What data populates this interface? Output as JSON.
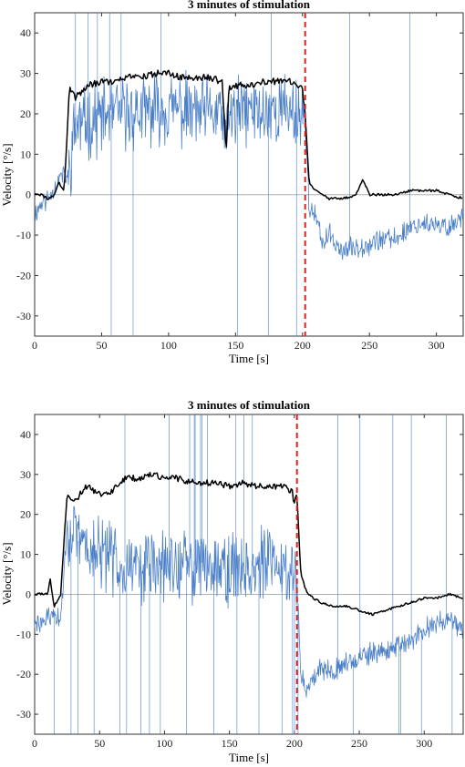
{
  "colors": {
    "black_trace": "#000000",
    "blue_trace": "#4a7fc8",
    "stim_end": "#e0201b",
    "zero_line": "#b0b0b0"
  },
  "chart_data": [
    {
      "type": "line",
      "title": "3 minutes of stimulation",
      "xlabel": "Time [s]",
      "ylabel": "Velocity [°/s]",
      "xlim": [
        0,
        320
      ],
      "ylim": [
        -35,
        45
      ],
      "xticks": [
        0,
        50,
        100,
        150,
        200,
        250,
        300
      ],
      "yticks": [
        -30,
        -20,
        -10,
        0,
        10,
        20,
        30,
        40
      ],
      "xtick_labels": [
        "0",
        "50",
        "100",
        "150",
        "200",
        "250",
        "300"
      ],
      "ytick_labels": [
        "-30",
        "-20",
        "-10",
        "0",
        "10",
        "20",
        "30",
        "40"
      ],
      "grid": false,
      "stimulation_end_x": 202,
      "series": [
        {
          "x": [
            0,
            5,
            10,
            15,
            18,
            22,
            26,
            30,
            40,
            50,
            60,
            70,
            80,
            90,
            100,
            110,
            120,
            130,
            140,
            143,
            145,
            150,
            160,
            170,
            180,
            190,
            195,
            200,
            202,
            205,
            210,
            220,
            230,
            240,
            245,
            250,
            260,
            270,
            280,
            290,
            300,
            310,
            320
          ],
          "y": [
            0,
            0,
            -1,
            0,
            3,
            1,
            26,
            24,
            27,
            28,
            28,
            29,
            29,
            30,
            30,
            29,
            29,
            29,
            28,
            10,
            26,
            27,
            27,
            28,
            28,
            28,
            27,
            26,
            20,
            3,
            1,
            -1,
            -1,
            0,
            4,
            0,
            0,
            0,
            1,
            1,
            1,
            0,
            -1
          ]
        },
        {
          "x": [
            0,
            5,
            10,
            15,
            20,
            25,
            30,
            40,
            50,
            60,
            70,
            80,
            90,
            100,
            110,
            120,
            130,
            140,
            143,
            145,
            150,
            160,
            170,
            180,
            190,
            200,
            202,
            205,
            210,
            215,
            220,
            225,
            230,
            240,
            250,
            260,
            270,
            280,
            290,
            300,
            310,
            320
          ],
          "y": [
            -5,
            -2,
            -1,
            2,
            5,
            4,
            17,
            18,
            19,
            20,
            20,
            20,
            21,
            21,
            21,
            20,
            20,
            20,
            12,
            20,
            20,
            21,
            20,
            21,
            21,
            20,
            18,
            -3,
            -6,
            -12,
            -10,
            -12,
            -14,
            -13,
            -12,
            -11,
            -11,
            -8,
            -7,
            -8,
            -8,
            -5
          ]
        }
      ]
    },
    {
      "type": "line",
      "title": "3 minutes of stimulation",
      "xlabel": "Time [s]",
      "ylabel": "Velocity [°/s]",
      "xlim": [
        0,
        330
      ],
      "ylim": [
        -35,
        45
      ],
      "xticks": [
        0,
        50,
        100,
        150,
        200,
        250,
        300
      ],
      "yticks": [
        -30,
        -20,
        -10,
        0,
        10,
        20,
        30,
        40
      ],
      "xtick_labels": [
        "0",
        "50",
        "100",
        "150",
        "200",
        "250",
        "300"
      ],
      "ytick_labels": [
        "-30",
        "-20",
        "-10",
        "0",
        "10",
        "20",
        "30",
        "40"
      ],
      "grid": false,
      "stimulation_end_x": 202,
      "series": [
        {
          "x": [
            0,
            5,
            10,
            12,
            15,
            20,
            25,
            30,
            40,
            50,
            60,
            70,
            80,
            90,
            100,
            110,
            120,
            130,
            140,
            150,
            160,
            170,
            180,
            190,
            198,
            200,
            202,
            205,
            210,
            220,
            230,
            240,
            250,
            260,
            270,
            280,
            290,
            300,
            310,
            320,
            330
          ],
          "y": [
            0,
            0,
            0,
            4,
            -3,
            0,
            25,
            23,
            27,
            25,
            26,
            29,
            29,
            30,
            29,
            29,
            28,
            28,
            28,
            27,
            28,
            27,
            27,
            27,
            26,
            23,
            25,
            5,
            0,
            -2,
            -3,
            -3,
            -4,
            -5,
            -4,
            -3,
            -2,
            -1,
            -1,
            0,
            -1
          ]
        },
        {
          "x": [
            0,
            5,
            10,
            15,
            20,
            25,
            30,
            40,
            50,
            60,
            70,
            80,
            90,
            100,
            110,
            120,
            130,
            140,
            150,
            160,
            170,
            180,
            190,
            200,
            202,
            205,
            210,
            215,
            220,
            230,
            240,
            250,
            260,
            270,
            280,
            290,
            300,
            310,
            320,
            330
          ],
          "y": [
            -8,
            -7,
            -6,
            -5,
            -7,
            17,
            14,
            12,
            10,
            9,
            8,
            7,
            7,
            7,
            7,
            7,
            8,
            8,
            6,
            7,
            7,
            8,
            7,
            6,
            4,
            -20,
            -25,
            -20,
            -18,
            -19,
            -17,
            -16,
            -15,
            -14,
            -13,
            -12,
            -9,
            -7,
            -6,
            -10
          ]
        }
      ]
    }
  ]
}
